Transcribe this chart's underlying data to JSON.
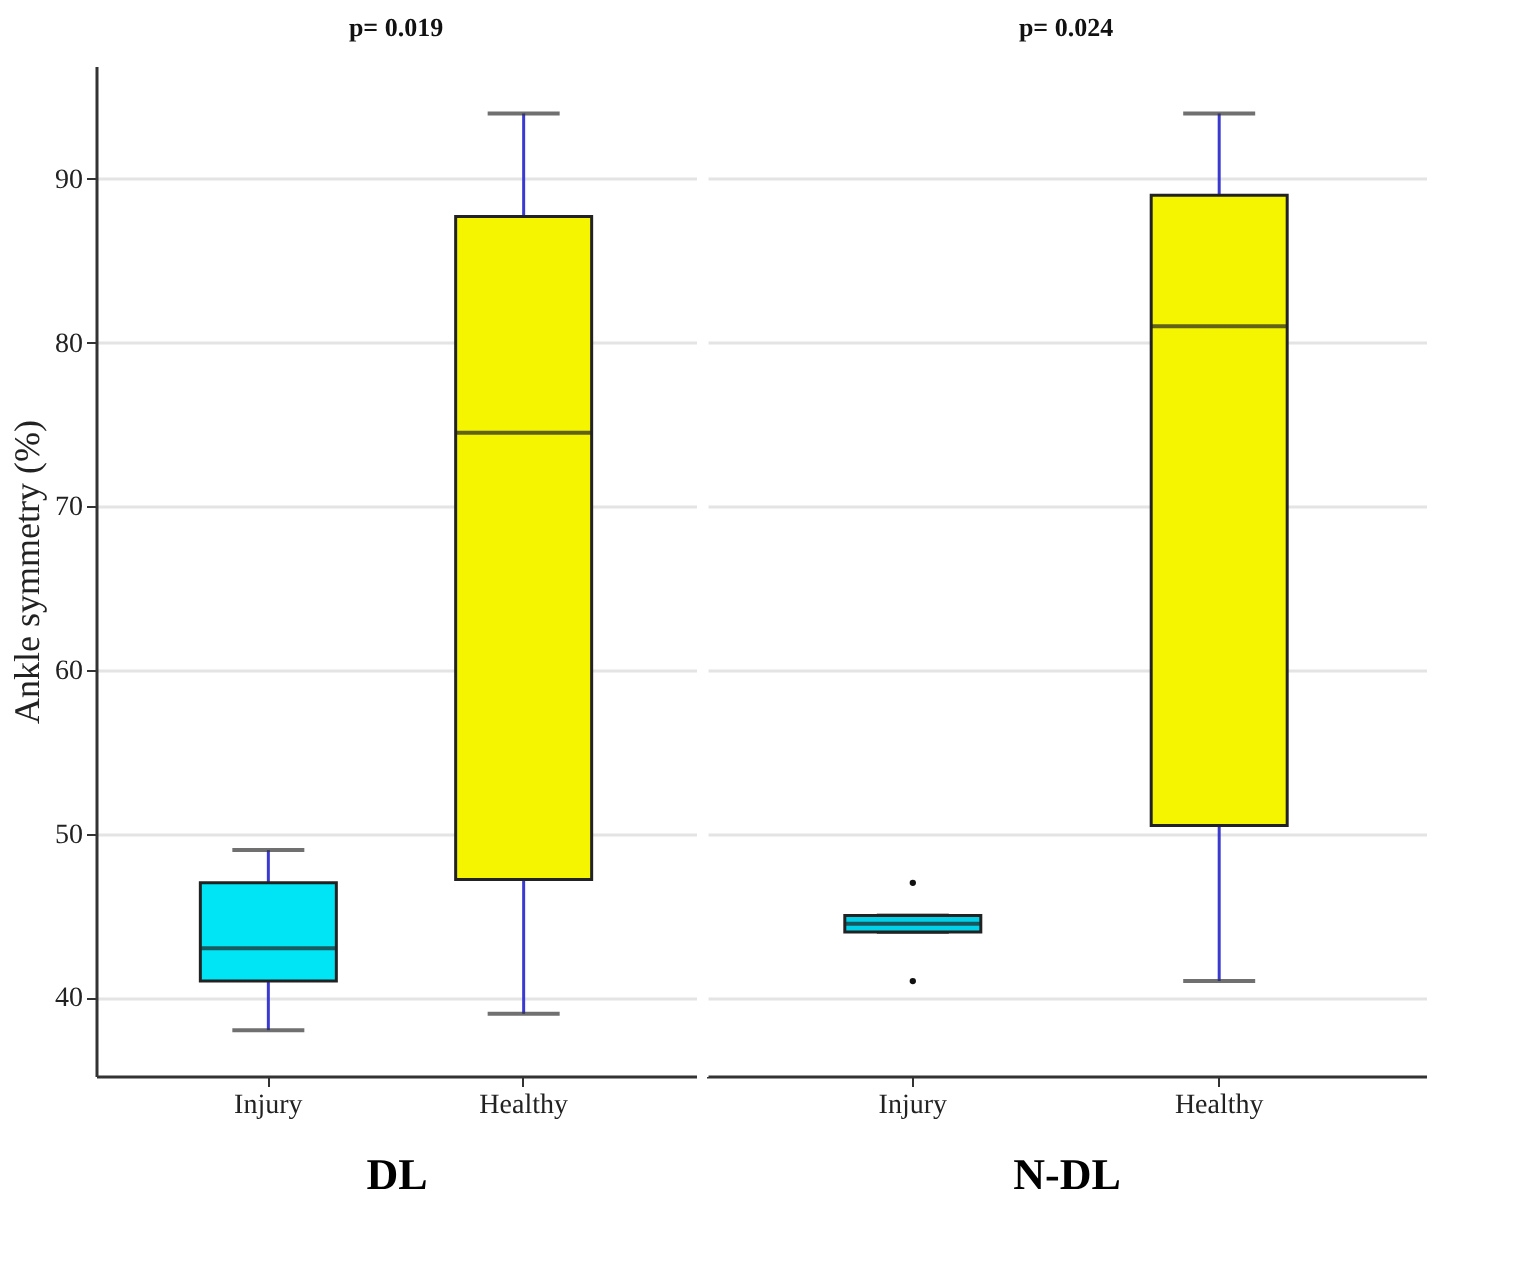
{
  "chart_data": [
    {
      "type": "box",
      "title": null,
      "annotations": [
        "p= 0.019"
      ],
      "xlabel": "DL",
      "ylabel": "Ankle symmetry (%)",
      "categories": [
        "Injury",
        "Healthy"
      ],
      "colors": [
        "#00e5f5",
        "#f5f500"
      ],
      "boxes": [
        {
          "low": 38,
          "q1": 41,
          "median": 43,
          "q3": 47,
          "high": 49
        },
        {
          "low": 39,
          "q1": 47.2,
          "median": 74.5,
          "q3": 87.7,
          "high": 94
        }
      ],
      "ylim": [
        35.2,
        96.9
      ],
      "yticks": [
        40,
        50,
        60,
        70,
        80,
        90
      ],
      "grid": "y"
    },
    {
      "type": "box",
      "annotations": [
        "p= 0.024"
      ],
      "xlabel": "N-DL",
      "categories": [
        "Injury",
        "Healthy"
      ],
      "colors": [
        "#00d0e8",
        "#f5f500"
      ],
      "boxes": [
        {
          "low": 44,
          "q1": 44,
          "median": 44.5,
          "q3": 45,
          "high": 45,
          "outliers": [
            47,
            41
          ]
        },
        {
          "low": 41,
          "q1": 50.5,
          "median": 81,
          "q3": 89,
          "high": 94
        }
      ],
      "ylim": [
        35.2,
        96.9
      ],
      "yticks": [
        40,
        50,
        60,
        70,
        80,
        90
      ],
      "grid": "y",
      "tick_labels": "x"
    }
  ]
}
